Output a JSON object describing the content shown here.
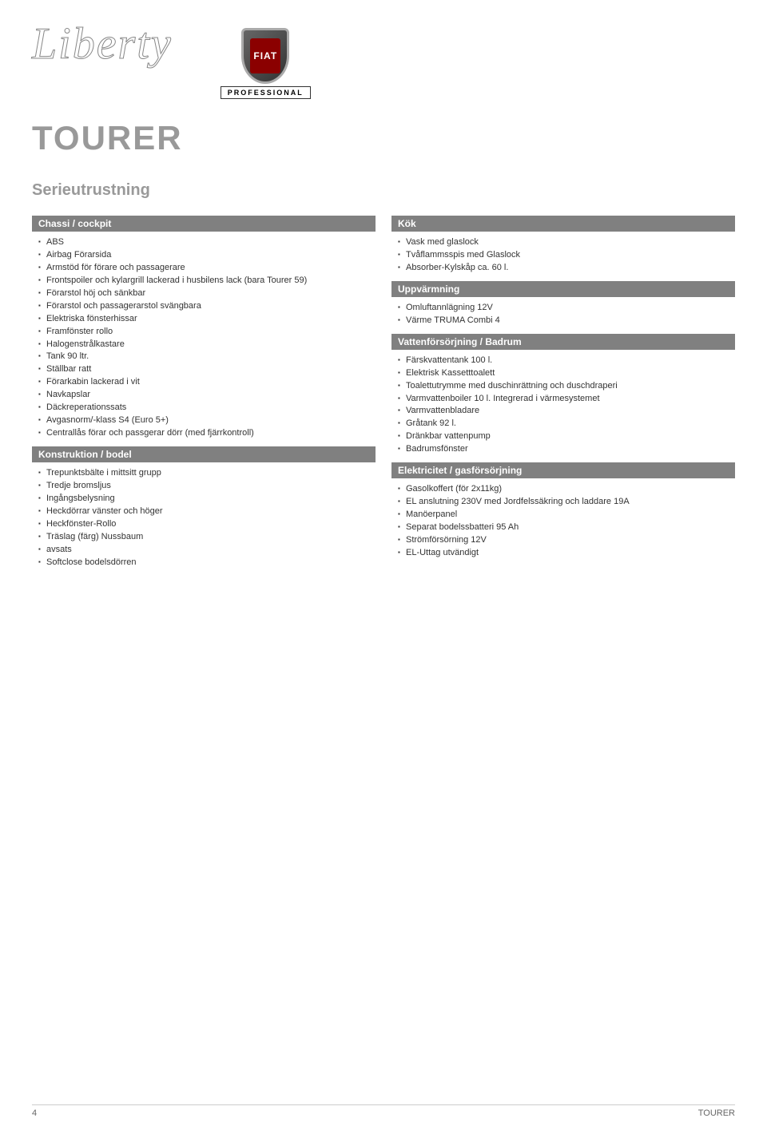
{
  "header": {
    "liberty": "Liberty",
    "fiat_text": "FIAT",
    "professional": "PROFESSIONAL"
  },
  "title": "TOURER",
  "subtitle": "Serieutrustning",
  "left_column": {
    "sections": [
      {
        "title": "Chassi / cockpit",
        "items": [
          "ABS",
          "Airbag Förarsida",
          "Armstöd för förare och passagerare",
          "Frontspoiler och kylargrill lackerad i husbilens lack (bara Tourer 59)",
          "Förarstol höj och sänkbar",
          "Förarstol och passagerarstol svängbara",
          "Elektriska fönsterhissar",
          "Framfönster rollo",
          "Halogenstrålkastare",
          "Tank 90 ltr.",
          "Ställbar ratt",
          "Förarkabin lackerad i vit",
          "Navkapslar",
          "Däckreperationssats",
          "Avgasnorm/-klass S4 (Euro 5+)",
          "Centrallås förar och passgerar dörr (med fjärrkontroll)"
        ]
      },
      {
        "title": "Konstruktion / bodel",
        "items": [
          "Trepunktsbälte i mittsitt grupp",
          "Tredje bromsljus",
          "Ingångsbelysning",
          "Heckdörrar vänster och höger",
          "Heckfönster-Rollo",
          "Träslag (färg) Nussbaum",
          "avsats",
          "Softclose bodelsdörren"
        ]
      }
    ]
  },
  "right_column": {
    "sections": [
      {
        "title": "Kök",
        "items": [
          "Vask med glaslock",
          "Tvåflammsspis med Glaslock",
          "Absorber-Kylskåp ca. 60 l."
        ]
      },
      {
        "title": "Uppvärmning",
        "items": [
          "Omluftannlägning 12V",
          "Värme TRUMA Combi 4"
        ]
      },
      {
        "title": "Vattenförsörjning / Badrum",
        "items": [
          "Färskvattentank 100 l.",
          "Elektrisk Kassetttoalett",
          "Toalettutrymme med duschinrättning och duschdraperi",
          "Varmvattenboiler 10 l. Integrerad i värmesystemet",
          "Varmvattenbladare",
          "Gråtank 92 l.",
          "Dränkbar vattenpump",
          "Badrumsfönster"
        ]
      },
      {
        "title": "Elektricitet / gasförsörjning",
        "items": [
          "Gasolkoffert (för 2x11kg)",
          "EL anslutning 230V med Jordfelssäkring och laddare 19A",
          "Manöerpanel",
          "Separat bodelssbatteri 95 Ah",
          "Strömförsörning 12V",
          "EL-Uttag utvändigt"
        ]
      }
    ]
  },
  "footer": {
    "page_number": "4",
    "label": "TOURER"
  },
  "colors": {
    "section_header_bg": "#808080",
    "section_header_text": "#ffffff",
    "title_color": "#999999",
    "text_color": "#333333",
    "background": "#ffffff"
  }
}
